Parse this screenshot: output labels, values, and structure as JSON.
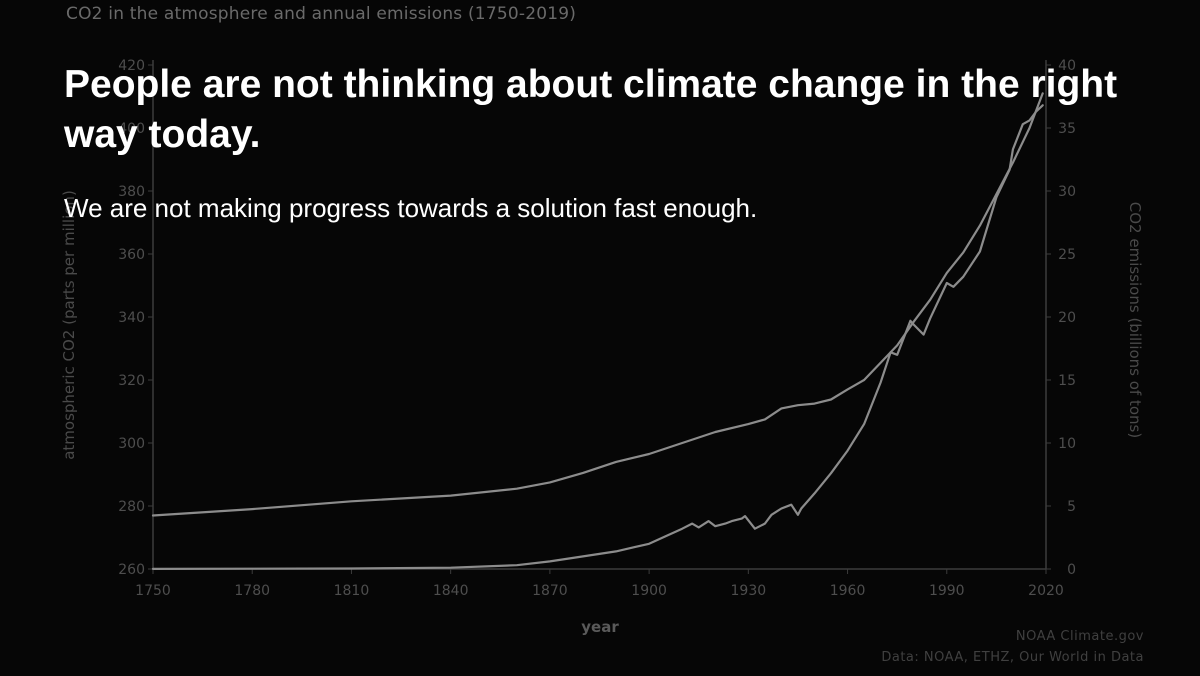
{
  "slide": {
    "headline": "People are not thinking about climate change in the right way today.",
    "subhead": "We are not making progress towards a solution fast enough."
  },
  "chart_data": {
    "type": "line",
    "title": "CO2 in the atmosphere and annual emissions (1750-2019)",
    "xlabel": "year",
    "ylabel_left": "atmospheric CO2 (parts per million)",
    "ylabel_right": "CO2 emissions (billions of tons)",
    "xlim": [
      1750,
      2020
    ],
    "ylim_left": [
      260,
      420
    ],
    "ylim_right": [
      0,
      40
    ],
    "x_ticks": [
      "1750",
      "1780",
      "1810",
      "1840",
      "1870",
      "1900",
      "1930",
      "1960",
      "1990",
      "2020"
    ],
    "y_ticks_left": [
      "260",
      "280",
      "300",
      "320",
      "340",
      "360",
      "380",
      "400",
      "420"
    ],
    "y_ticks_right": [
      "0",
      "5",
      "10",
      "15",
      "20",
      "25",
      "30",
      "35",
      "40"
    ],
    "grid": false,
    "series": [
      {
        "name": "atmospheric CO2",
        "axis": "left",
        "points": [
          [
            1750,
            277
          ],
          [
            1780,
            279
          ],
          [
            1810,
            281.5
          ],
          [
            1840,
            283.3
          ],
          [
            1860,
            285.5
          ],
          [
            1870,
            287.5
          ],
          [
            1880,
            290.5
          ],
          [
            1890,
            294
          ],
          [
            1900,
            296.5
          ],
          [
            1910,
            300
          ],
          [
            1920,
            303.5
          ],
          [
            1930,
            306
          ],
          [
            1935,
            307.5
          ],
          [
            1940,
            311
          ],
          [
            1945,
            312
          ],
          [
            1950,
            312.5
          ],
          [
            1955,
            313.8
          ],
          [
            1960,
            317
          ],
          [
            1965,
            320
          ],
          [
            1970,
            325.5
          ],
          [
            1975,
            331
          ],
          [
            1980,
            338.5
          ],
          [
            1985,
            345.5
          ],
          [
            1990,
            354
          ],
          [
            1995,
            360.5
          ],
          [
            2000,
            369
          ],
          [
            2005,
            379
          ],
          [
            2010,
            389
          ],
          [
            2015,
            400
          ],
          [
            2019,
            411
          ]
        ]
      },
      {
        "name": "annual CO2 emissions",
        "axis": "right",
        "points": [
          [
            1750,
            0.01
          ],
          [
            1780,
            0.02
          ],
          [
            1810,
            0.04
          ],
          [
            1840,
            0.1
          ],
          [
            1860,
            0.3
          ],
          [
            1870,
            0.6
          ],
          [
            1880,
            1.0
          ],
          [
            1890,
            1.4
          ],
          [
            1900,
            2.0
          ],
          [
            1905,
            2.6
          ],
          [
            1910,
            3.2
          ],
          [
            1913,
            3.6
          ],
          [
            1915,
            3.3
          ],
          [
            1918,
            3.8
          ],
          [
            1920,
            3.4
          ],
          [
            1923,
            3.6
          ],
          [
            1925,
            3.8
          ],
          [
            1928,
            4.0
          ],
          [
            1929,
            4.2
          ],
          [
            1932,
            3.2
          ],
          [
            1935,
            3.6
          ],
          [
            1937,
            4.3
          ],
          [
            1940,
            4.8
          ],
          [
            1943,
            5.1
          ],
          [
            1945,
            4.3
          ],
          [
            1946,
            4.8
          ],
          [
            1950,
            6.0
          ],
          [
            1955,
            7.6
          ],
          [
            1960,
            9.4
          ],
          [
            1965,
            11.5
          ],
          [
            1970,
            14.8
          ],
          [
            1973,
            17.2
          ],
          [
            1975,
            17.0
          ],
          [
            1979,
            19.7
          ],
          [
            1980,
            19.4
          ],
          [
            1983,
            18.6
          ],
          [
            1985,
            19.9
          ],
          [
            1990,
            22.7
          ],
          [
            1992,
            22.4
          ],
          [
            1995,
            23.2
          ],
          [
            2000,
            25.2
          ],
          [
            2005,
            29.5
          ],
          [
            2009,
            31.7
          ],
          [
            2010,
            33.3
          ],
          [
            2013,
            35.3
          ],
          [
            2015,
            35.6
          ],
          [
            2017,
            36.3
          ],
          [
            2019,
            36.8
          ]
        ]
      }
    ]
  },
  "source": {
    "line1": "NOAA Climate.gov",
    "line2": "Data: NOAA, ETHZ, Our World in Data"
  }
}
